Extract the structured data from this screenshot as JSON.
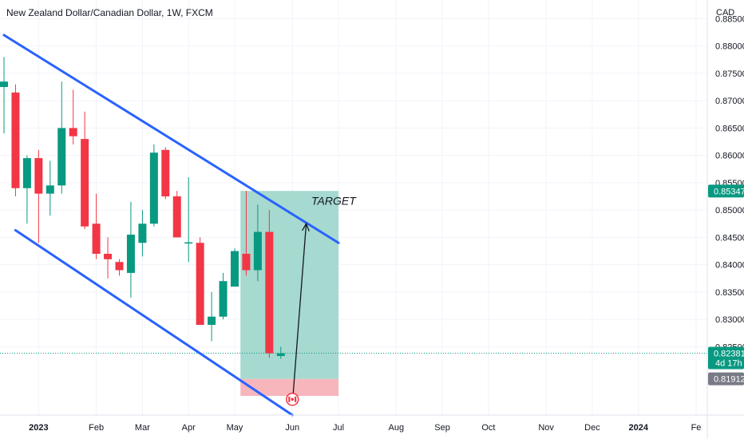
{
  "header": {
    "title": "New Zealand Dollar/Canadian Dollar, 1W, FXCM",
    "currency": "CAD"
  },
  "chart_data": {
    "type": "candlestick",
    "title": "New Zealand Dollar/Canadian Dollar, 1W, FXCM",
    "ylabel": "CAD",
    "ylim": [
      0.8125,
      0.8855
    ],
    "y_ticks": [
      "0.88500",
      "0.88000",
      "0.87500",
      "0.87000",
      "0.86500",
      "0.86000",
      "0.85500",
      "0.85000",
      "0.84500",
      "0.84000",
      "0.83500",
      "0.83000",
      "0.82500"
    ],
    "x_ticks": [
      {
        "label": "2023",
        "index": 3
      },
      {
        "label": "Feb",
        "index": 8
      },
      {
        "label": "Mar",
        "index": 12
      },
      {
        "label": "Apr",
        "index": 16
      },
      {
        "label": "May",
        "index": 20
      },
      {
        "label": "Jun",
        "index": 25
      },
      {
        "label": "Jul",
        "index": 29
      },
      {
        "label": "Aug",
        "index": 34
      },
      {
        "label": "Sep",
        "index": 38
      },
      {
        "label": "Oct",
        "index": 42
      },
      {
        "label": "Nov",
        "index": 47
      },
      {
        "label": "Dec",
        "index": 51
      },
      {
        "label": "2024",
        "index": 55
      },
      {
        "label": "Fe",
        "index": 60
      }
    ],
    "candles": [
      {
        "o": 0.8725,
        "h": 0.878,
        "l": 0.864,
        "c": 0.8735
      },
      {
        "o": 0.8715,
        "h": 0.873,
        "l": 0.8525,
        "c": 0.854
      },
      {
        "o": 0.854,
        "h": 0.86,
        "l": 0.8475,
        "c": 0.8595
      },
      {
        "o": 0.8595,
        "h": 0.861,
        "l": 0.844,
        "c": 0.853
      },
      {
        "o": 0.853,
        "h": 0.859,
        "l": 0.849,
        "c": 0.8545
      },
      {
        "o": 0.8545,
        "h": 0.8735,
        "l": 0.853,
        "c": 0.865
      },
      {
        "o": 0.865,
        "h": 0.872,
        "l": 0.862,
        "c": 0.8635
      },
      {
        "o": 0.863,
        "h": 0.868,
        "l": 0.8465,
        "c": 0.847
      },
      {
        "o": 0.8475,
        "h": 0.853,
        "l": 0.841,
        "c": 0.842
      },
      {
        "o": 0.842,
        "h": 0.845,
        "l": 0.8375,
        "c": 0.841
      },
      {
        "o": 0.8405,
        "h": 0.841,
        "l": 0.838,
        "c": 0.839
      },
      {
        "o": 0.8385,
        "h": 0.8515,
        "l": 0.834,
        "c": 0.8455
      },
      {
        "o": 0.844,
        "h": 0.85,
        "l": 0.8415,
        "c": 0.8475
      },
      {
        "o": 0.8475,
        "h": 0.862,
        "l": 0.847,
        "c": 0.8605
      },
      {
        "o": 0.861,
        "h": 0.8615,
        "l": 0.852,
        "c": 0.8525
      },
      {
        "o": 0.8525,
        "h": 0.8535,
        "l": 0.845,
        "c": 0.845
      },
      {
        "o": 0.8441,
        "h": 0.856,
        "l": 0.8405,
        "c": 0.8441
      },
      {
        "o": 0.844,
        "h": 0.845,
        "l": 0.829,
        "c": 0.829
      },
      {
        "o": 0.829,
        "h": 0.835,
        "l": 0.826,
        "c": 0.8305
      },
      {
        "o": 0.8305,
        "h": 0.8385,
        "l": 0.83,
        "c": 0.837
      },
      {
        "o": 0.836,
        "h": 0.843,
        "l": 0.836,
        "c": 0.8425
      },
      {
        "o": 0.842,
        "h": 0.8535,
        "l": 0.838,
        "c": 0.839
      },
      {
        "o": 0.839,
        "h": 0.851,
        "l": 0.837,
        "c": 0.846
      },
      {
        "o": 0.846,
        "h": 0.85,
        "l": 0.823,
        "c": 0.8238
      },
      {
        "o": 0.8233,
        "h": 0.825,
        "l": 0.8228,
        "c": 0.8238
      }
    ],
    "channel_lines": [
      {
        "from": {
          "index": 0,
          "price": 0.882
        },
        "to": {
          "index": 29,
          "price": 0.844
        }
      },
      {
        "from": {
          "index": 1,
          "price": 0.8463
        },
        "to": {
          "index": 25,
          "price": 0.8125
        }
      }
    ],
    "position": {
      "start_index": 20.5,
      "end_index": 29,
      "target": 0.8535,
      "entry": 0.8191,
      "stop": 0.816
    },
    "arrow": {
      "from": {
        "index": 25,
        "price": 0.8145
      },
      "to": {
        "index": 26.2,
        "price": 0.8475
      }
    },
    "annotation": "TARGET",
    "price_labels": [
      {
        "text": "0.85347",
        "price": 0.85347,
        "color": "#089981"
      },
      {
        "text": "0.82381",
        "price": 0.82381,
        "color": "#089981",
        "subtext": "4d 17h"
      },
      {
        "text": "0.81912",
        "price": 0.81912,
        "color": "#787b86"
      }
    ],
    "colors": {
      "up": "#089981",
      "down": "#f23645",
      "channel": "#2962ff",
      "profit_zone": "#a6d9cf",
      "loss_zone": "#f7b6bc"
    },
    "grid": true
  }
}
